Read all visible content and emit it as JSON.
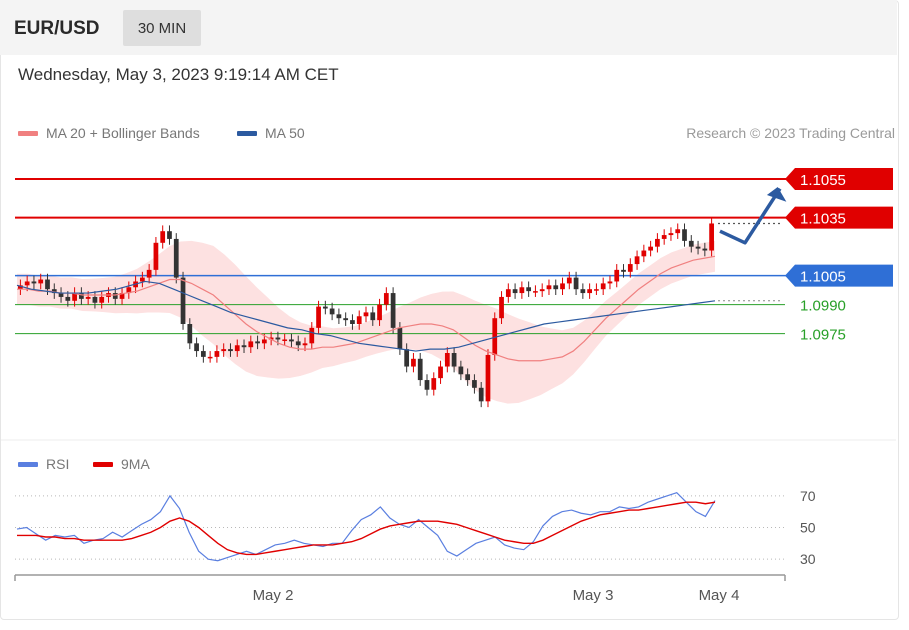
{
  "header": {
    "pair": "EUR/USD",
    "timeframe": "30 MIN"
  },
  "timestamp": "Wednesday, May 3, 2023 9:19:14 AM CET",
  "legend": {
    "ma20": {
      "label": "MA 20 + Bollinger Bands",
      "color": "#f08080"
    },
    "ma50": {
      "label": "MA 50",
      "color": "#2c5aa0"
    }
  },
  "credit": "Research © 2023 Trading Central",
  "rsi_legend": {
    "rsi": {
      "label": "RSI",
      "color": "#5a7fe0"
    },
    "ma9": {
      "label": "9MA",
      "color": "#e00000"
    }
  },
  "colors": {
    "up": "#e00000",
    "down": "#333333",
    "resistance": "#e00000",
    "pivot": "#2f6fd6",
    "support": "#28a028",
    "band_fill": "#fde1e1",
    "arrow": "#2c5aa0"
  },
  "chart_data": [
    {
      "type": "line",
      "title": "",
      "ylim": [
        1.092,
        1.107
      ],
      "x_ticks": [
        "May 2",
        "May 3",
        "May 4"
      ],
      "levels": [
        {
          "value": 1.1055,
          "label": "1.1055",
          "kind": "resistance"
        },
        {
          "value": 1.1035,
          "label": "1.1035",
          "kind": "resistance"
        },
        {
          "value": 1.1005,
          "label": "1.1005",
          "kind": "pivot"
        },
        {
          "value": 1.099,
          "label": "1.0990",
          "kind": "support"
        },
        {
          "value": 1.0975,
          "label": "1.0975",
          "kind": "support"
        }
      ],
      "candle_close": [
        1.1,
        1.1002,
        1.1001,
        1.1003,
        1.0998,
        1.0996,
        1.0994,
        1.0992,
        1.0996,
        1.0993,
        1.0994,
        1.0991,
        1.0994,
        1.0996,
        1.0993,
        1.0996,
        1.0999,
        1.1002,
        1.1004,
        1.1008,
        1.1022,
        1.1028,
        1.1024,
        1.1004,
        1.098,
        1.097,
        1.0966,
        1.0963,
        1.0963,
        1.0966,
        1.0967,
        1.0966,
        1.0969,
        1.0968,
        1.0971,
        1.097,
        1.0972,
        1.0973,
        1.0972,
        1.0972,
        1.0971,
        1.0969,
        1.097,
        1.0978,
        1.0989,
        1.0988,
        1.0985,
        1.0983,
        1.0982,
        1.098,
        1.0984,
        1.0986,
        1.0982,
        1.099,
        1.0996,
        1.0978,
        1.0967,
        1.0958,
        1.0962,
        1.0951,
        1.0946,
        1.0952,
        1.0958,
        1.0965,
        1.0958,
        1.0954,
        1.0951,
        1.0947,
        1.094,
        1.0964,
        1.0983,
        1.0994,
        1.0998,
        1.0996,
        1.0999,
        1.0997,
        1.0997,
        1.0998,
        1.1,
        1.0998,
        1.1001,
        1.1004,
        1.0998,
        1.0996,
        1.0998,
        1.0998,
        1.1001,
        1.1002,
        1.1008,
        1.1007,
        1.1011,
        1.1015,
        1.1018,
        1.102,
        1.1024,
        1.1026,
        1.1027,
        1.1029,
        1.1023,
        1.102,
        1.1019,
        1.1018,
        1.1032
      ],
      "series": [
        {
          "name": "MA 20 + Bollinger Bands",
          "values": [
            1.0998,
            1.0998,
            1.0997,
            1.0997,
            1.0996,
            1.0996,
            1.0995,
            1.0995,
            1.0995,
            1.0995,
            1.0996,
            1.0997,
            1.0999,
            1.1001,
            1.1003,
            1.1003,
            1.1001,
            1.0998,
            1.0995,
            1.099,
            1.0985,
            1.098,
            1.0976,
            1.0973,
            1.097,
            1.0968,
            1.0967,
            1.0967,
            1.0968,
            1.0968,
            1.0969,
            1.097,
            1.0972,
            1.0974,
            1.0976,
            1.0978,
            1.0979,
            1.098,
            1.098,
            1.0979,
            1.0977,
            1.0973,
            1.0969,
            1.0966,
            1.0964,
            1.0962,
            1.0961,
            1.0961,
            1.0961,
            1.0962,
            1.0963,
            1.0966,
            1.0971,
            1.0977,
            1.0983,
            1.0988,
            1.0993,
            1.0998,
            1.1002,
            1.1006,
            1.1009,
            1.1011,
            1.1013,
            1.1014,
            1.1015
          ]
        },
        {
          "name": "MA 50",
          "values": [
            1.1,
            1.0998,
            1.0997,
            1.0996,
            1.0996,
            1.0996,
            1.0997,
            1.0998,
            1.1,
            1.1002,
            1.1001,
            1.0998,
            1.0995,
            1.0992,
            1.0989,
            1.0986,
            1.0984,
            1.0982,
            1.098,
            1.0978,
            1.0977,
            1.0975,
            1.0974,
            1.0972,
            1.097,
            1.0969,
            1.0968,
            1.0967,
            1.0966,
            1.0967,
            1.0967,
            1.0968,
            1.097,
            1.0972,
            1.0974,
            1.0976,
            1.0978,
            1.098,
            1.0981,
            1.0982,
            1.0983,
            1.0984,
            1.0985,
            1.0986,
            1.0987,
            1.0988,
            1.0989,
            1.099,
            1.0991,
            1.0992
          ]
        }
      ],
      "forecast_path": [
        [
          1.1028,
          0
        ],
        [
          1.1022,
          1
        ],
        [
          1.105,
          2
        ]
      ]
    },
    {
      "type": "line",
      "title": "",
      "ylim": [
        20,
        80
      ],
      "y_ticks": [
        "70",
        "50",
        "30"
      ],
      "x_ticks": [
        "May 2",
        "May 3",
        "May 4"
      ],
      "series": [
        {
          "name": "RSI",
          "values": [
            49,
            50,
            46,
            42,
            45,
            44,
            45,
            40,
            42,
            43,
            47,
            44,
            48,
            52,
            55,
            60,
            70,
            62,
            47,
            35,
            30,
            29,
            31,
            33,
            35,
            33,
            36,
            39,
            40,
            42,
            40,
            39,
            38,
            40,
            40,
            48,
            55,
            58,
            63,
            56,
            52,
            50,
            55,
            50,
            45,
            35,
            32,
            36,
            40,
            42,
            44,
            39,
            37,
            36,
            41,
            51,
            57,
            60,
            61,
            59,
            58,
            60,
            60,
            63,
            62,
            63,
            66,
            68,
            70,
            72,
            66,
            60,
            57,
            67
          ]
        },
        {
          "name": "9MA",
          "values": [
            45,
            45,
            45,
            44,
            44,
            43,
            43,
            42,
            42,
            42,
            42,
            42,
            43,
            45,
            47,
            50,
            54,
            56,
            54,
            50,
            45,
            40,
            36,
            34,
            33,
            33,
            34,
            35,
            36,
            37,
            38,
            39,
            39,
            39,
            40,
            41,
            43,
            46,
            49,
            51,
            52,
            53,
            54,
            54,
            54,
            53,
            52,
            50,
            48,
            46,
            44,
            42,
            41,
            40,
            40,
            42,
            45,
            48,
            51,
            54,
            56,
            58,
            59,
            60,
            61,
            61,
            62,
            63,
            64,
            65,
            66,
            66,
            65,
            66
          ]
        }
      ]
    }
  ]
}
